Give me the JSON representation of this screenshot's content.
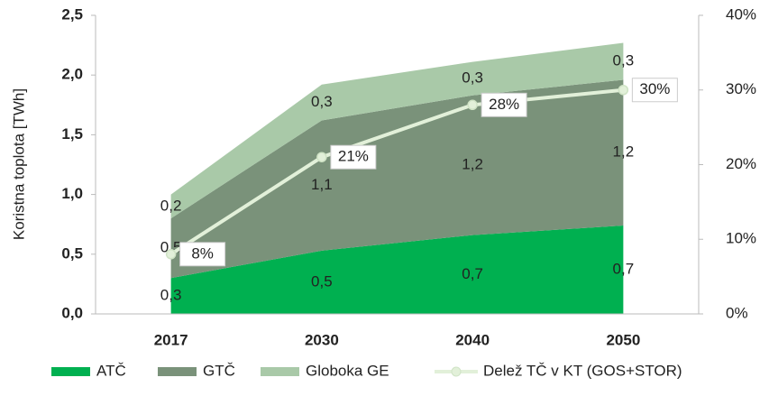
{
  "chart_data": {
    "type": "area",
    "ylabel": "Koristna toplota [TWh]",
    "categories": [
      "2017",
      "2030",
      "2040",
      "2050"
    ],
    "series": [
      {
        "name": "ATČ",
        "color": "#00b050",
        "values": [
          0.3,
          0.53,
          0.66,
          0.74
        ],
        "value_labels": [
          "0,3",
          "0,5",
          "0,7",
          "0,7"
        ]
      },
      {
        "name": "GTČ",
        "color": "#7a927a",
        "values": [
          0.5,
          1.09,
          1.17,
          1.22
        ],
        "value_labels": [
          "0,5",
          "1,1",
          "1,2",
          "1,2"
        ]
      },
      {
        "name": "Globoka GE",
        "color": "#a9c9a8",
        "values": [
          0.2,
          0.3,
          0.28,
          0.31
        ],
        "value_labels": [
          "0,2",
          "0,3",
          "0,3",
          "0,3"
        ]
      },
      {
        "name": "Delež TČ v KT (GOS+STOR)",
        "type": "line",
        "axis": "y2",
        "color": "#e2f0d9",
        "values": [
          8,
          21,
          28,
          30
        ],
        "value_labels": [
          "8%",
          "21%",
          "28%",
          "30%"
        ]
      }
    ],
    "ylim": [
      0,
      2.5
    ],
    "yticks": [
      {
        "value": 0,
        "label": "0,0"
      },
      {
        "value": 0.5,
        "label": "0,5"
      },
      {
        "value": 1,
        "label": "1,0"
      },
      {
        "value": 1.5,
        "label": "1,5"
      },
      {
        "value": 2,
        "label": "2,0"
      },
      {
        "value": 2.5,
        "label": "2,5"
      }
    ],
    "y2lim": [
      0,
      40
    ],
    "y2ticks": [
      {
        "value": 0,
        "label": "0%"
      },
      {
        "value": 10,
        "label": "10%"
      },
      {
        "value": 20,
        "label": "20%"
      },
      {
        "value": 30,
        "label": "30%"
      },
      {
        "value": 40,
        "label": "40%"
      }
    ],
    "grid": false,
    "legend": "bottom"
  }
}
